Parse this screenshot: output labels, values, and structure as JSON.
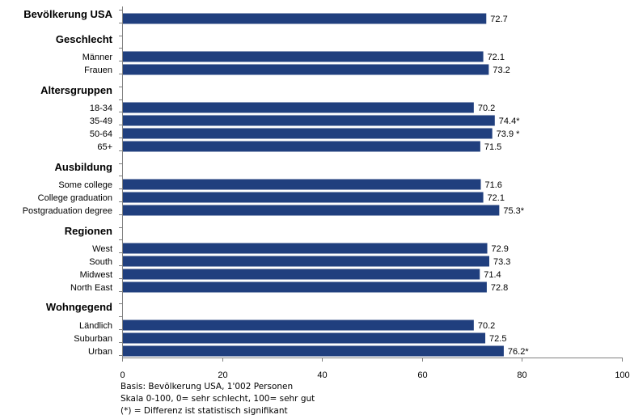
{
  "chart_data": {
    "type": "bar",
    "orientation": "horizontal",
    "xlim": [
      0,
      100
    ],
    "xticks": [
      0,
      20,
      40,
      60,
      80,
      100
    ],
    "bar_color": "#203f7e",
    "grid": false,
    "groups": [
      {
        "title": "Bevölkerung USA",
        "items": [
          {
            "label": "",
            "value": 72.7,
            "value_label": "72.7"
          }
        ]
      },
      {
        "title": "Geschlecht",
        "items": [
          {
            "label": "Männer",
            "value": 72.1,
            "value_label": "72.1"
          },
          {
            "label": "Frauen",
            "value": 73.2,
            "value_label": "73.2"
          }
        ]
      },
      {
        "title": "Altersgruppen",
        "items": [
          {
            "label": "18-34",
            "value": 70.2,
            "value_label": "70.2"
          },
          {
            "label": "35-49",
            "value": 74.4,
            "value_label": "74.4*"
          },
          {
            "label": "50-64",
            "value": 73.9,
            "value_label": "73.9 *"
          },
          {
            "label": "65+",
            "value": 71.5,
            "value_label": "71.5"
          }
        ]
      },
      {
        "title": "Ausbildung",
        "items": [
          {
            "label": "Some college",
            "value": 71.6,
            "value_label": "71.6"
          },
          {
            "label": "College graduation",
            "value": 72.1,
            "value_label": "72.1"
          },
          {
            "label": "Postgraduation degree",
            "value": 75.3,
            "value_label": "75.3*"
          }
        ]
      },
      {
        "title": "Regionen",
        "items": [
          {
            "label": "West",
            "value": 72.9,
            "value_label": "72.9"
          },
          {
            "label": "South",
            "value": 73.3,
            "value_label": "73.3"
          },
          {
            "label": "Midwest",
            "value": 71.4,
            "value_label": "71.4"
          },
          {
            "label": "North East",
            "value": 72.8,
            "value_label": "72.8"
          }
        ]
      },
      {
        "title": "Wohngegend",
        "items": [
          {
            "label": "Ländlich",
            "value": 70.2,
            "value_label": "70.2"
          },
          {
            "label": "Suburban",
            "value": 72.5,
            "value_label": "72.5"
          },
          {
            "label": "Urban",
            "value": 76.2,
            "value_label": "76.2*"
          }
        ]
      }
    ]
  },
  "notes": {
    "line1": "Basis: Bevölkerung USA, 1'002 Personen",
    "line2": "Skala 0-100, 0= sehr schlecht, 100= sehr gut",
    "line3": "(*) = Differenz ist statistisch signifikant"
  }
}
